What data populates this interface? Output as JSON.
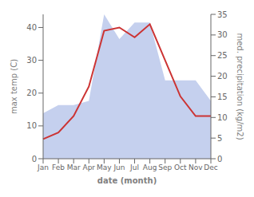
{
  "chart_data": {
    "type": "line",
    "xlabel": "date (month)",
    "ylabel": "max temp (C)",
    "y2label": "med. precipitation (kg/m2)",
    "categories": [
      "Jan",
      "Feb",
      "Mar",
      "Apr",
      "May",
      "Jun",
      "Jul",
      "Aug",
      "Sep",
      "Oct",
      "Nov",
      "Dec"
    ],
    "series": [
      {
        "type": "area",
        "axis": "y2",
        "color": "#c5d0ee",
        "values": [
          11,
          13,
          13,
          14,
          35,
          29,
          33,
          33,
          19,
          19,
          19,
          14
        ]
      },
      {
        "type": "line",
        "color": "#cc3333",
        "values": [
          6,
          8,
          13,
          22,
          39,
          40,
          37,
          41,
          30,
          19,
          13,
          13
        ]
      }
    ],
    "ylim": [
      0,
      44
    ],
    "yticks": [
      0,
      10,
      20,
      30,
      40
    ],
    "y2lim": [
      0,
      35
    ],
    "y2ticks": [
      0,
      5,
      10,
      15,
      20,
      25,
      30,
      35
    ],
    "grid": false
  }
}
